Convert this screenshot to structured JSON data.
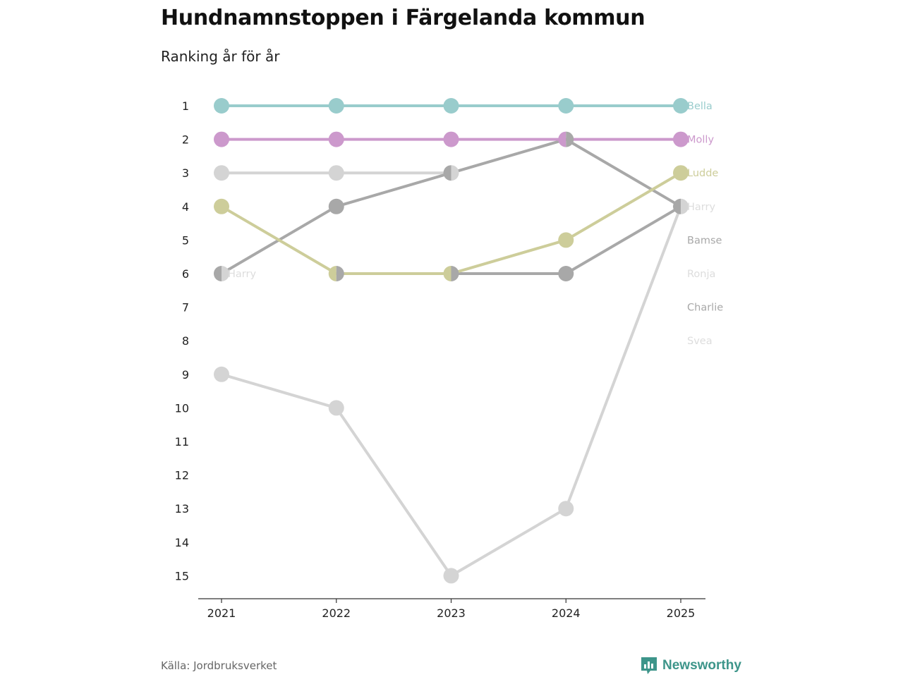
{
  "chart_data": {
    "type": "line",
    "title": "Hundnamnstoppen i Färgelanda kommun",
    "subtitle": "Ranking år för år",
    "xlabel": "",
    "ylabel": "",
    "x": [
      "2021",
      "2022",
      "2023",
      "2024",
      "2025"
    ],
    "ylim": [
      1,
      15
    ],
    "y_inverted": true,
    "y_ticks": [
      "1",
      "2",
      "3",
      "4",
      "5",
      "6",
      "7",
      "8",
      "9",
      "10",
      "11",
      "12",
      "13",
      "14",
      "15"
    ],
    "series": [
      {
        "name": "Svea",
        "color": "#d4d4d4",
        "values": [
          9,
          10,
          15,
          13,
          4
        ]
      },
      {
        "name": "Ronja",
        "color": "#d4d4d4",
        "values": [
          3,
          3,
          3,
          null,
          null
        ]
      },
      {
        "name": "Harry",
        "color": "#d4d4d4",
        "values": [
          6,
          null,
          null,
          null,
          null
        ]
      },
      {
        "name": "Bamse",
        "color": "#a8a8a8",
        "values": [
          6,
          4,
          3,
          2,
          4
        ]
      },
      {
        "name": "Charlie",
        "color": "#a8a8a8",
        "values": [
          null,
          6,
          6,
          6,
          4
        ]
      },
      {
        "name": "Ludde",
        "color": "#cdcd9a",
        "values": [
          4,
          6,
          6,
          5,
          3
        ]
      },
      {
        "name": "Molly",
        "color": "#cc99cc",
        "values": [
          2,
          2,
          2,
          2,
          2
        ]
      },
      {
        "name": "Bella",
        "color": "#99cccc",
        "values": [
          1,
          1,
          1,
          1,
          1
        ]
      }
    ],
    "overlap_color": "#6e6e73",
    "end_labels": [
      {
        "name": "Bella",
        "color": "#99cccc"
      },
      {
        "name": "Molly",
        "color": "#cc99cc"
      },
      {
        "name": "Ludde",
        "color": "#cdcd9a"
      },
      {
        "name": "Harry",
        "color": "#dddddd"
      },
      {
        "name": "Bamse",
        "color": "#a8a8a8"
      },
      {
        "name": "Ronja",
        "color": "#dddddd"
      },
      {
        "name": "Charlie",
        "color": "#a8a8a8"
      },
      {
        "name": "Svea",
        "color": "#dddddd"
      }
    ],
    "inline_labels": [
      {
        "name": "Harry",
        "x": "2021",
        "rank": 6,
        "color": "#dddddd"
      }
    ]
  },
  "footer": {
    "source": "Källa: Jordbruksverket",
    "brand": "Newsworthy",
    "brand_icon": "newsworthy-logo-icon",
    "brand_color": "#3d958a"
  }
}
